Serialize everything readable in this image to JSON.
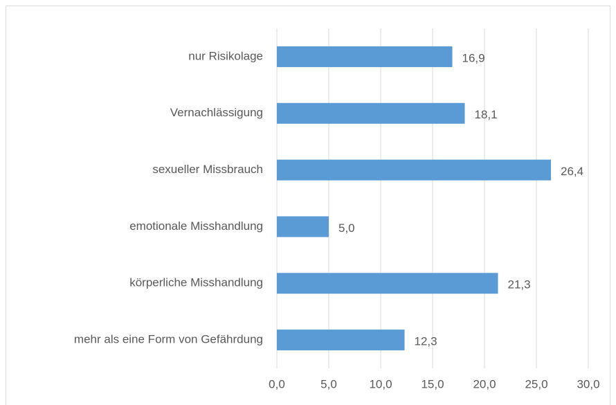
{
  "chart_data": {
    "type": "bar",
    "orientation": "horizontal",
    "categories": [
      "nur Risikolage",
      "Vernachlässigung",
      "sexueller Missbrauch",
      "emotionale Misshandlung",
      "körperliche Misshandlung",
      "mehr als eine Form von Gefährdung"
    ],
    "values": [
      16.9,
      18.1,
      26.4,
      5.0,
      21.3,
      12.3
    ],
    "value_labels": [
      "16,9",
      "18,1",
      "26,4",
      "5,0",
      "21,3",
      "12,3"
    ],
    "color": "#5b9bd5",
    "xlim": [
      0,
      30
    ],
    "xticks": [
      {
        "value": 0,
        "label": "0,0"
      },
      {
        "value": 5,
        "label": "5,0"
      },
      {
        "value": 10,
        "label": "10,0"
      },
      {
        "value": 15,
        "label": "15,0"
      },
      {
        "value": 20,
        "label": "20,0"
      },
      {
        "value": 25,
        "label": "25,0"
      },
      {
        "value": 30,
        "label": "30,0"
      }
    ],
    "grid": true
  }
}
